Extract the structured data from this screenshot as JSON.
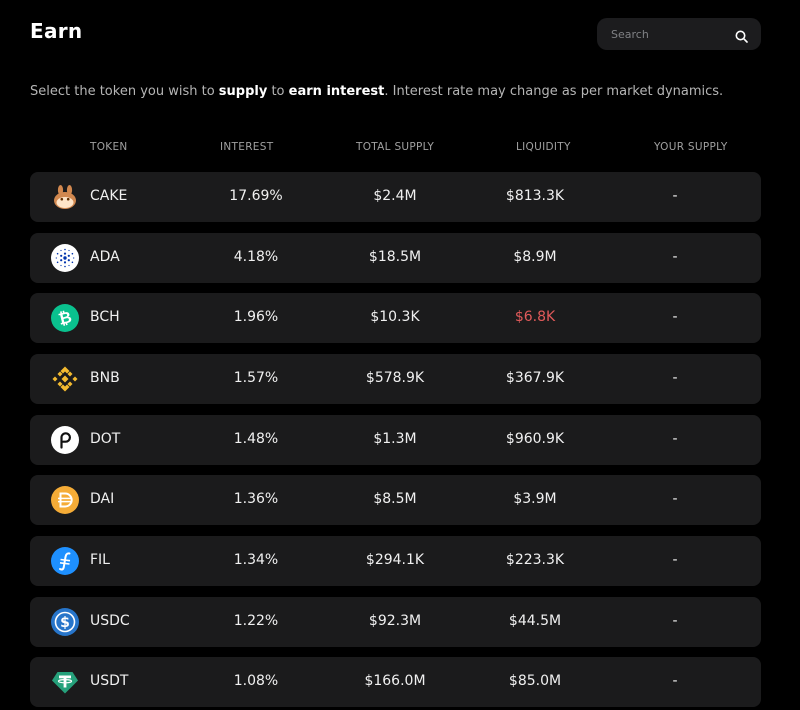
{
  "page": {
    "title": "Earn"
  },
  "search": {
    "placeholder": "Search"
  },
  "description": {
    "before": "Select the token you wish to ",
    "bold1": "supply",
    "mid": " to ",
    "bold2": "earn interest",
    "after": ". Interest rate may change as per market dynamics."
  },
  "table": {
    "columns": [
      "TOKEN",
      "INTEREST",
      "TOTAL SUPPLY",
      "LIQUIDITY",
      "YOUR SUPPLY"
    ],
    "rows": [
      {
        "symbol": "CAKE",
        "icon": "pancakeswap-icon",
        "interest": "17.69%",
        "total_supply": "$2.4M",
        "liquidity": "$813.3K",
        "your_supply": "-"
      },
      {
        "symbol": "ADA",
        "icon": "cardano-icon",
        "interest": "4.18%",
        "total_supply": "$18.5M",
        "liquidity": "$8.9M",
        "your_supply": "-"
      },
      {
        "symbol": "BCH",
        "icon": "bitcoin-cash-icon",
        "interest": "1.96%",
        "total_supply": "$10.3K",
        "liquidity": "$6.8K",
        "your_supply": "-",
        "liquidity_color": "#e05a5a"
      },
      {
        "symbol": "BNB",
        "icon": "bnb-icon",
        "interest": "1.57%",
        "total_supply": "$578.9K",
        "liquidity": "$367.9K",
        "your_supply": "-"
      },
      {
        "symbol": "DOT",
        "icon": "polkadot-icon",
        "interest": "1.48%",
        "total_supply": "$1.3M",
        "liquidity": "$960.9K",
        "your_supply": "-"
      },
      {
        "symbol": "DAI",
        "icon": "dai-icon",
        "interest": "1.36%",
        "total_supply": "$8.5M",
        "liquidity": "$3.9M",
        "your_supply": "-"
      },
      {
        "symbol": "FIL",
        "icon": "filecoin-icon",
        "interest": "1.34%",
        "total_supply": "$294.1K",
        "liquidity": "$223.3K",
        "your_supply": "-"
      },
      {
        "symbol": "USDC",
        "icon": "usdc-icon",
        "interest": "1.22%",
        "total_supply": "$92.3M",
        "liquidity": "$44.5M",
        "your_supply": "-"
      },
      {
        "symbol": "USDT",
        "icon": "tether-icon",
        "interest": "1.08%",
        "total_supply": "$166.0M",
        "liquidity": "$85.0M",
        "your_supply": "-"
      }
    ]
  },
  "colors": {
    "background": "#000000",
    "row_background": "#1b1b1c",
    "search_background": "#1c1c1e",
    "negative": "#e05a5a"
  }
}
